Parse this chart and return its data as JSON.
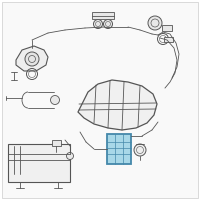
{
  "background_color": "#ffffff",
  "border_color": "#cccccc",
  "line_color": "#555555",
  "highlight_color": "#a8d8e8",
  "highlight_stroke": "#4488aa",
  "figsize": [
    2.0,
    2.0
  ],
  "dpi": 100
}
